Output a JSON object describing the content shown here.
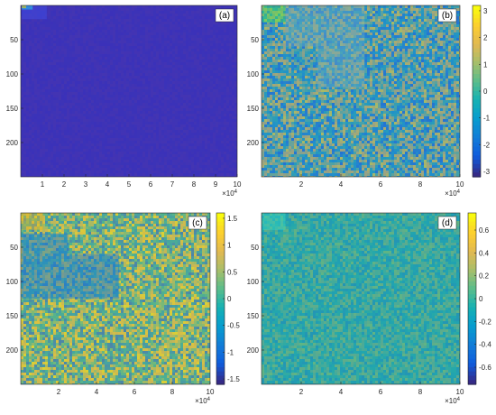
{
  "chart_data": [
    {
      "type": "heatmap",
      "panel_label": "(a)",
      "colorbar": false,
      "x_exponent_label": "×10^4",
      "x_ticks": [
        1,
        2,
        3,
        4,
        5,
        6,
        7,
        8,
        9,
        10
      ],
      "y_ticks": [
        50,
        100,
        150,
        200
      ],
      "x_range": [
        0,
        10
      ],
      "y_range": [
        0,
        250
      ],
      "background_color": "#3d2fb8",
      "noise": 0.03,
      "regions": [
        {
          "x": [
            0.05,
            1.2
          ],
          "y": [
            0,
            20
          ],
          "color": "#3f3fcf"
        },
        {
          "x": [
            0.05,
            0.55
          ],
          "y": [
            0,
            6
          ],
          "color": "#2fa3e5"
        },
        {
          "x": [
            0.05,
            0.25
          ],
          "y": [
            0,
            4
          ],
          "color": "#d8d020"
        }
      ]
    },
    {
      "type": "heatmap",
      "panel_label": "(b)",
      "colorbar": true,
      "colorbar_ticks": [
        3,
        2,
        1,
        0,
        -1,
        -2,
        -3
      ],
      "colorbar_range": [
        -3.2,
        3.2
      ],
      "x_exponent_label": "×10^4",
      "x_ticks": [
        2,
        4,
        6,
        8,
        10
      ],
      "y_ticks": [
        50,
        100,
        150,
        200
      ],
      "x_range": [
        0,
        10
      ],
      "y_range": [
        0,
        250
      ],
      "background_color": "#3f83c6",
      "noise": 0.55,
      "regions": [
        {
          "x": [
            1.2,
            5.2
          ],
          "y": [
            0,
            60
          ],
          "color": "#5a9bc2"
        },
        {
          "x": [
            2.8,
            5.2
          ],
          "y": [
            60,
            120
          ],
          "color": "#5a9bc2"
        },
        {
          "x": [
            0.05,
            1.2
          ],
          "y": [
            0,
            25
          ],
          "color": "#46c07a"
        }
      ]
    },
    {
      "type": "heatmap",
      "panel_label": "(c)",
      "colorbar": true,
      "colorbar_ticks": [
        1.5,
        1,
        0.5,
        0,
        -0.5,
        -1,
        -1.5
      ],
      "colorbar_range": [
        -1.6,
        1.6
      ],
      "x_exponent_label": "×10^4",
      "x_ticks": [
        2,
        4,
        6,
        8,
        10
      ],
      "y_ticks": [
        50,
        100,
        150,
        200
      ],
      "x_range": [
        0,
        10
      ],
      "y_range": [
        0,
        250
      ],
      "background_color": "#a8b35a",
      "noise": 0.6,
      "regions": [
        {
          "x": [
            0.05,
            5.2
          ],
          "y": [
            60,
            125
          ],
          "color": "#3e89b5"
        },
        {
          "x": [
            0.05,
            2.5
          ],
          "y": [
            30,
            60
          ],
          "color": "#3e89b5"
        },
        {
          "x": [
            0.05,
            1.2
          ],
          "y": [
            0,
            25
          ],
          "color": "#c9b33a"
        }
      ]
    },
    {
      "type": "heatmap",
      "panel_label": "(d)",
      "colorbar": true,
      "colorbar_ticks": [
        0.6,
        0.4,
        0.2,
        0,
        -0.2,
        -0.4,
        -0.6
      ],
      "colorbar_range": [
        -0.75,
        0.75
      ],
      "x_exponent_label": "×10^4",
      "x_ticks": [
        2,
        4,
        6,
        8,
        10
      ],
      "y_ticks": [
        50,
        100,
        150,
        200
      ],
      "x_range": [
        0,
        10
      ],
      "y_range": [
        0,
        250
      ],
      "background_color": "#2aa5a8",
      "noise": 0.25,
      "regions": [
        {
          "x": [
            0.05,
            1.2
          ],
          "y": [
            0,
            25
          ],
          "color": "#2fbfb6"
        }
      ]
    }
  ]
}
